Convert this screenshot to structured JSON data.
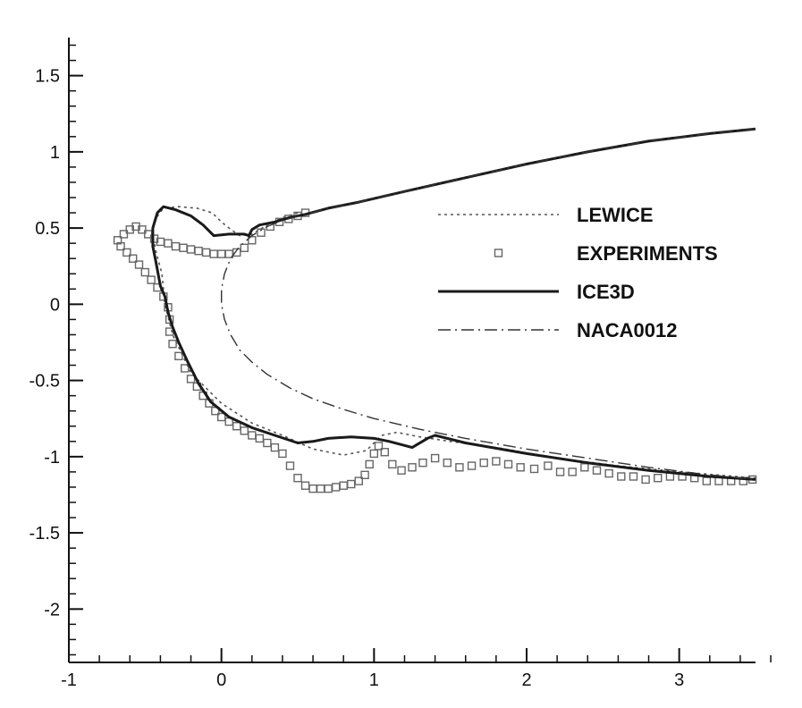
{
  "chart_data": {
    "type": "line",
    "title": "",
    "xlabel": "",
    "ylabel": "",
    "xlim": [
      -1,
      3.5
    ],
    "ylim": [
      -2.35,
      1.75
    ],
    "xticks": [
      {
        "value": -1,
        "label": "-1"
      },
      {
        "value": 0,
        "label": "0"
      },
      {
        "value": 1,
        "label": "1"
      },
      {
        "value": 2,
        "label": "2"
      },
      {
        "value": 3,
        "label": "3"
      }
    ],
    "yticks": [
      {
        "value": 1.5,
        "label": "1.5"
      },
      {
        "value": 1,
        "label": "1"
      },
      {
        "value": 0.5,
        "label": "0.5"
      },
      {
        "value": 0,
        "label": "0"
      },
      {
        "value": -0.5,
        "label": "-0.5"
      },
      {
        "value": -1,
        "label": "-1"
      },
      {
        "value": -1.5,
        "label": "-1.5"
      },
      {
        "value": -2,
        "label": "-2"
      }
    ],
    "x_minor_step": 0.2,
    "y_minor_step": 0.1,
    "grid": false,
    "legend_position": "right",
    "series": [
      {
        "name": "LEWICE",
        "style": "dotted",
        "color": "#555555",
        "points": [
          [
            0.5,
            0.6
          ],
          [
            0.4,
            0.57
          ],
          [
            0.3,
            0.52
          ],
          [
            0.2,
            0.46
          ],
          [
            0.12,
            0.45
          ],
          [
            0.05,
            0.5
          ],
          [
            0.0,
            0.54
          ],
          [
            -0.06,
            0.6
          ],
          [
            -0.16,
            0.63
          ],
          [
            -0.28,
            0.64
          ],
          [
            -0.38,
            0.63
          ],
          [
            -0.44,
            0.55
          ],
          [
            -0.45,
            0.45
          ],
          [
            -0.43,
            0.35
          ],
          [
            -0.39,
            0.2
          ],
          [
            -0.37,
            0.0
          ],
          [
            -0.32,
            -0.2
          ],
          [
            -0.2,
            -0.45
          ],
          [
            0.0,
            -0.65
          ],
          [
            0.2,
            -0.78
          ],
          [
            0.4,
            -0.86
          ],
          [
            0.6,
            -0.95
          ],
          [
            0.8,
            -0.99
          ],
          [
            0.95,
            -0.96
          ],
          [
            1.05,
            -0.86
          ],
          [
            1.15,
            -0.84
          ],
          [
            1.3,
            -0.87
          ],
          [
            1.5,
            -0.9
          ],
          [
            1.8,
            -0.94
          ],
          [
            2.2,
            -1.01
          ],
          [
            2.6,
            -1.06
          ],
          [
            3.0,
            -1.1
          ],
          [
            3.5,
            -1.14
          ]
        ]
      },
      {
        "name": "EXPERIMENTS",
        "style": "markers",
        "color": "#666666",
        "points": [
          [
            -0.68,
            0.42
          ],
          [
            -0.64,
            0.46
          ],
          [
            -0.6,
            0.49
          ],
          [
            -0.56,
            0.51
          ],
          [
            -0.52,
            0.49
          ],
          [
            -0.48,
            0.46
          ],
          [
            -0.44,
            0.43
          ],
          [
            -0.4,
            0.41
          ],
          [
            -0.35,
            0.4
          ],
          [
            -0.3,
            0.38
          ],
          [
            -0.25,
            0.37
          ],
          [
            -0.2,
            0.36
          ],
          [
            -0.15,
            0.35
          ],
          [
            -0.1,
            0.34
          ],
          [
            -0.05,
            0.33
          ],
          [
            0.0,
            0.33
          ],
          [
            0.05,
            0.33
          ],
          [
            0.1,
            0.34
          ],
          [
            0.15,
            0.37
          ],
          [
            0.2,
            0.42
          ],
          [
            0.26,
            0.47
          ],
          [
            0.32,
            0.51
          ],
          [
            0.38,
            0.54
          ],
          [
            0.44,
            0.56
          ],
          [
            0.5,
            0.58
          ],
          [
            0.55,
            0.6
          ],
          [
            -0.66,
            0.38
          ],
          [
            -0.62,
            0.34
          ],
          [
            -0.58,
            0.3
          ],
          [
            -0.54,
            0.26
          ],
          [
            -0.5,
            0.21
          ],
          [
            -0.46,
            0.16
          ],
          [
            -0.42,
            0.11
          ],
          [
            -0.38,
            0.05
          ],
          [
            -0.35,
            -0.02
          ],
          [
            -0.34,
            -0.1
          ],
          [
            -0.34,
            -0.18
          ],
          [
            -0.32,
            -0.26
          ],
          [
            -0.28,
            -0.34
          ],
          [
            -0.24,
            -0.42
          ],
          [
            -0.2,
            -0.49
          ],
          [
            -0.16,
            -0.54
          ],
          [
            -0.12,
            -0.6
          ],
          [
            -0.08,
            -0.65
          ],
          [
            -0.04,
            -0.7
          ],
          [
            0.0,
            -0.74
          ],
          [
            0.05,
            -0.77
          ],
          [
            0.1,
            -0.8
          ],
          [
            0.15,
            -0.83
          ],
          [
            0.2,
            -0.86
          ],
          [
            0.25,
            -0.88
          ],
          [
            0.3,
            -0.91
          ],
          [
            0.35,
            -0.94
          ],
          [
            0.4,
            -0.98
          ],
          [
            0.45,
            -1.06
          ],
          [
            0.5,
            -1.14
          ],
          [
            0.55,
            -1.19
          ],
          [
            0.6,
            -1.21
          ],
          [
            0.65,
            -1.21
          ],
          [
            0.7,
            -1.21
          ],
          [
            0.75,
            -1.2
          ],
          [
            0.8,
            -1.19
          ],
          [
            0.85,
            -1.18
          ],
          [
            0.9,
            -1.16
          ],
          [
            0.94,
            -1.12
          ],
          [
            0.97,
            -1.05
          ],
          [
            1.0,
            -0.98
          ],
          [
            1.03,
            -0.93
          ],
          [
            1.07,
            -0.97
          ],
          [
            1.12,
            -1.05
          ],
          [
            1.18,
            -1.09
          ],
          [
            1.25,
            -1.07
          ],
          [
            1.32,
            -1.04
          ],
          [
            1.4,
            -1.01
          ],
          [
            1.48,
            -1.04
          ],
          [
            1.56,
            -1.07
          ],
          [
            1.64,
            -1.06
          ],
          [
            1.72,
            -1.04
          ],
          [
            1.8,
            -1.03
          ],
          [
            1.88,
            -1.05
          ],
          [
            1.96,
            -1.07
          ],
          [
            2.05,
            -1.08
          ],
          [
            2.14,
            -1.06
          ],
          [
            2.22,
            -1.1
          ],
          [
            2.3,
            -1.1
          ],
          [
            2.38,
            -1.07
          ],
          [
            2.46,
            -1.09
          ],
          [
            2.54,
            -1.11
          ],
          [
            2.62,
            -1.13
          ],
          [
            2.7,
            -1.13
          ],
          [
            2.78,
            -1.15
          ],
          [
            2.86,
            -1.14
          ],
          [
            2.94,
            -1.13
          ],
          [
            3.02,
            -1.13
          ],
          [
            3.1,
            -1.14
          ],
          [
            3.18,
            -1.16
          ],
          [
            3.26,
            -1.16
          ],
          [
            3.34,
            -1.16
          ],
          [
            3.42,
            -1.16
          ],
          [
            3.48,
            -1.15
          ]
        ]
      },
      {
        "name": "ICE3D",
        "style": "solid",
        "color": "#1a1a1a",
        "points": [
          [
            3.5,
            1.15
          ],
          [
            3.2,
            1.12
          ],
          [
            2.8,
            1.07
          ],
          [
            2.4,
            1.0
          ],
          [
            2.0,
            0.92
          ],
          [
            1.6,
            0.83
          ],
          [
            1.2,
            0.74
          ],
          [
            0.9,
            0.67
          ],
          [
            0.7,
            0.63
          ],
          [
            0.55,
            0.59
          ],
          [
            0.45,
            0.57
          ],
          [
            0.35,
            0.54
          ],
          [
            0.25,
            0.52
          ],
          [
            0.2,
            0.49
          ],
          [
            0.18,
            0.45
          ],
          [
            0.15,
            0.46
          ],
          [
            0.05,
            0.46
          ],
          [
            -0.05,
            0.45
          ],
          [
            -0.12,
            0.52
          ],
          [
            -0.2,
            0.58
          ],
          [
            -0.3,
            0.62
          ],
          [
            -0.38,
            0.64
          ],
          [
            -0.42,
            0.6
          ],
          [
            -0.45,
            0.5
          ],
          [
            -0.45,
            0.38
          ],
          [
            -0.43,
            0.28
          ],
          [
            -0.4,
            0.12
          ],
          [
            -0.37,
            0.05
          ],
          [
            -0.35,
            -0.05
          ],
          [
            -0.32,
            -0.15
          ],
          [
            -0.28,
            -0.25
          ],
          [
            -0.22,
            -0.38
          ],
          [
            -0.15,
            -0.52
          ],
          [
            -0.07,
            -0.64
          ],
          [
            0.05,
            -0.74
          ],
          [
            0.2,
            -0.81
          ],
          [
            0.35,
            -0.86
          ],
          [
            0.5,
            -0.91
          ],
          [
            0.6,
            -0.9
          ],
          [
            0.7,
            -0.88
          ],
          [
            0.85,
            -0.87
          ],
          [
            1.0,
            -0.88
          ],
          [
            1.1,
            -0.9
          ],
          [
            1.25,
            -0.94
          ],
          [
            1.35,
            -0.88
          ],
          [
            1.4,
            -0.86
          ],
          [
            1.6,
            -0.91
          ],
          [
            2.0,
            -0.98
          ],
          [
            2.4,
            -1.04
          ],
          [
            2.8,
            -1.09
          ],
          [
            3.2,
            -1.13
          ],
          [
            3.5,
            -1.15
          ]
        ]
      },
      {
        "name": "NACA0012",
        "style": "dashdot",
        "color": "#333333",
        "points": [
          [
            3.5,
            1.15
          ],
          [
            3.2,
            1.12
          ],
          [
            2.8,
            1.07
          ],
          [
            2.4,
            1.0
          ],
          [
            2.0,
            0.92
          ],
          [
            1.6,
            0.83
          ],
          [
            1.2,
            0.74
          ],
          [
            0.9,
            0.67
          ],
          [
            0.7,
            0.63
          ],
          [
            0.55,
            0.59
          ],
          [
            0.4,
            0.55
          ],
          [
            0.3,
            0.51
          ],
          [
            0.2,
            0.45
          ],
          [
            0.12,
            0.38
          ],
          [
            0.06,
            0.3
          ],
          [
            0.02,
            0.2
          ],
          [
            0.0,
            0.1
          ],
          [
            0.0,
            0.0
          ],
          [
            0.02,
            -0.1
          ],
          [
            0.06,
            -0.2
          ],
          [
            0.12,
            -0.3
          ],
          [
            0.2,
            -0.38
          ],
          [
            0.3,
            -0.46
          ],
          [
            0.45,
            -0.55
          ],
          [
            0.6,
            -0.62
          ],
          [
            0.8,
            -0.69
          ],
          [
            1.0,
            -0.75
          ],
          [
            1.3,
            -0.82
          ],
          [
            1.6,
            -0.88
          ],
          [
            2.0,
            -0.95
          ],
          [
            2.4,
            -1.01
          ],
          [
            2.8,
            -1.07
          ],
          [
            3.2,
            -1.12
          ],
          [
            3.5,
            -1.15
          ]
        ]
      }
    ]
  }
}
